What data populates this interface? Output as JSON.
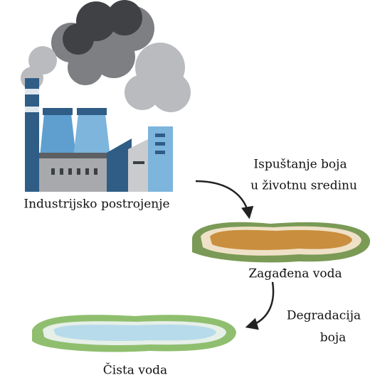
{
  "nodes": [
    {
      "label": "Industrijsko postrojenje"
    },
    {
      "label": "Zagađena voda"
    },
    {
      "label": "Čista voda"
    }
  ],
  "edges": [
    {
      "label": [
        "Ispuštanje boja",
        "u životnu sredinu"
      ]
    },
    {
      "label": [
        "Degradacija",
        "boja"
      ]
    }
  ]
}
